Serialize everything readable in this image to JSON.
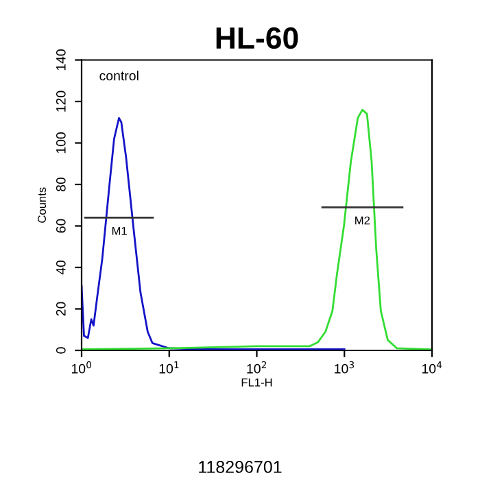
{
  "chart_data": {
    "type": "line",
    "title": "HL-60",
    "xlabel": "FL1-H",
    "ylabel": "Counts",
    "log": "x",
    "xlim": [
      1,
      10000
    ],
    "ylim": [
      0,
      140
    ],
    "xticks": [
      {
        "value": 1,
        "label": "10$^{0}$"
      },
      {
        "value": 10,
        "label": "10$^{1}$"
      },
      {
        "value": 100,
        "label": "10$^{2}$"
      },
      {
        "value": 1000,
        "label": "10$^{3}$"
      },
      {
        "value": 10000,
        "label": "10$^{4}$"
      }
    ],
    "yticks": [
      0,
      20,
      40,
      60,
      80,
      100,
      120,
      140
    ],
    "grid": false,
    "legend": false,
    "series": [
      {
        "color": "#1414c8",
        "x": [
          1.0,
          1.065,
          1.18,
          1.29,
          1.37,
          1.51,
          1.72,
          2.07,
          2.35,
          2.67,
          2.84,
          3.22,
          3.89,
          4.7,
          5.68,
          6.44,
          10,
          30,
          100,
          1000
        ],
        "values": [
          31,
          7,
          6,
          15,
          12,
          26,
          44,
          79,
          102,
          112,
          110,
          93,
          60,
          28,
          9,
          3.5,
          1,
          0.5,
          0.5,
          0.5
        ]
      },
      {
        "color": "#33dd33",
        "x": [
          1,
          10,
          100,
          400,
          500,
          608,
          730,
          824,
          988,
          1185,
          1422,
          1603,
          1811,
          2046,
          2307,
          2606,
          3126,
          3981,
          9800
        ],
        "values": [
          0.5,
          1,
          2,
          2,
          4,
          9,
          19,
          37,
          60,
          91,
          112,
          116,
          114,
          91,
          49,
          19,
          5,
          1,
          0.5
        ]
      },
      {
        "color": "#333333",
        "x": [
          1.1,
          6.5
        ],
        "values": [
          64,
          64
        ]
      },
      {
        "color": "#333333",
        "x": [
          560,
          4600
        ],
        "values": [
          69,
          69
        ]
      }
    ],
    "annotations": [
      "control",
      {
        "text": "M1",
        "x": 2.7,
        "y": 64
      },
      {
        "text": "M2",
        "x": 1600,
        "y": 69
      },
      "118296701"
    ]
  }
}
